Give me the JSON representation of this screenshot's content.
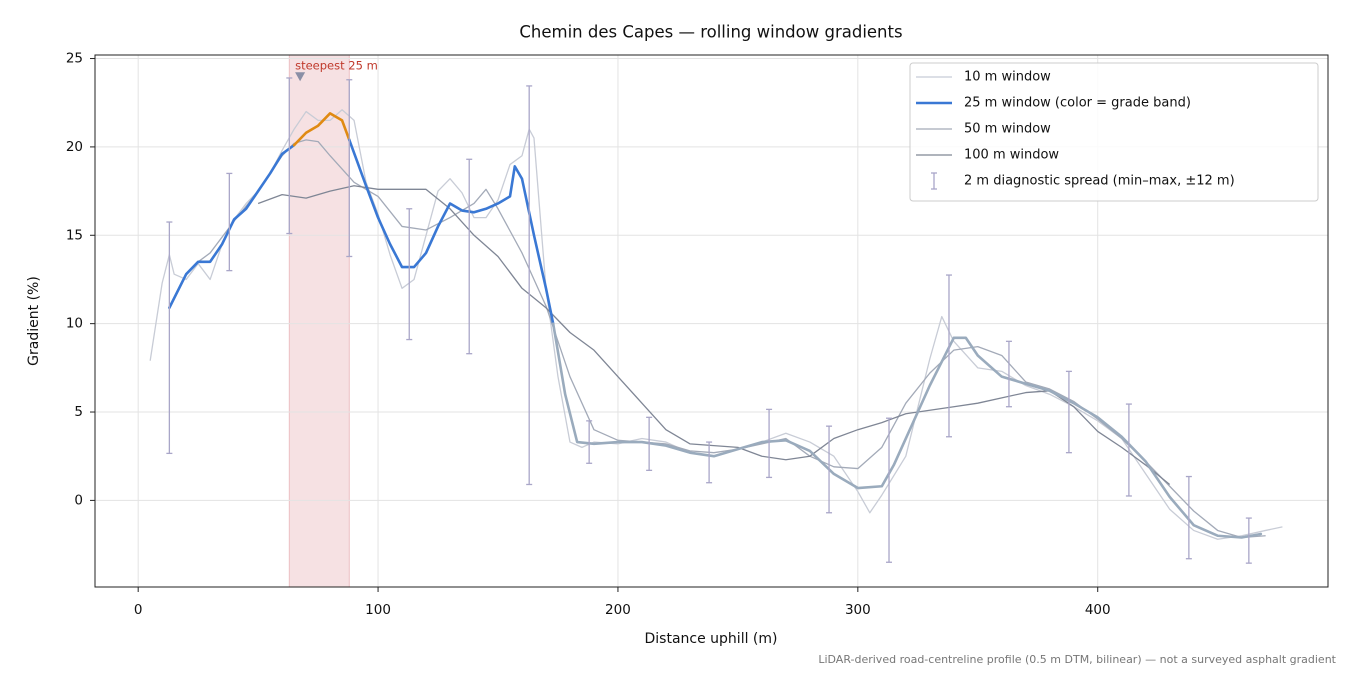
{
  "chart_data": {
    "type": "line",
    "title": "Chemin des Capes — rolling window gradients",
    "xlabel": "Distance uphill (m)",
    "ylabel": "Gradient (%)",
    "footnote": "LiDAR-derived road-centreline profile (0.5 m DTM, bilinear) — not a surveyed asphalt gradient",
    "xlim": [
      -18,
      496
    ],
    "ylim": [
      -4.9,
      25.2
    ],
    "xticks": [
      0,
      100,
      200,
      300,
      400
    ],
    "yticks": [
      0,
      5,
      10,
      15,
      20,
      25
    ],
    "grid": true,
    "legend": "upper right",
    "highlight": {
      "from": 63,
      "to": 88,
      "color": "#e8b4b8"
    },
    "annotation": {
      "text": "steepest 25 m",
      "x": 67.5,
      "y": 24,
      "color": "#c0392b"
    },
    "series": [
      {
        "name": "10 m window",
        "color": "#c8ccd6",
        "width": 1.3,
        "x": [
          5,
          10,
          13,
          15,
          20,
          25,
          30,
          35,
          40,
          45,
          50,
          55,
          60,
          65,
          70,
          75,
          80,
          85,
          90,
          95,
          100,
          105,
          110,
          115,
          120,
          125,
          130,
          135,
          140,
          145,
          150,
          155,
          160,
          163,
          165,
          170,
          175,
          180,
          185,
          190,
          200,
          210,
          220,
          230,
          240,
          250,
          260,
          270,
          280,
          290,
          300,
          305,
          310,
          320,
          330,
          335,
          340,
          350,
          360,
          370,
          380,
          390,
          400,
          410,
          420,
          430,
          440,
          450,
          460,
          470,
          477
        ],
        "values": [
          7.9,
          12.3,
          13.9,
          12.8,
          12.5,
          13.4,
          12.5,
          14.5,
          15.9,
          16.8,
          17.5,
          18.5,
          19.8,
          21,
          22,
          21.5,
          21.5,
          22.1,
          21.5,
          18,
          16.2,
          13.9,
          12,
          12.5,
          15,
          17.5,
          18.2,
          17.4,
          16,
          16,
          17,
          19,
          19.5,
          21,
          20.5,
          12,
          7,
          3.3,
          3,
          3.3,
          3.2,
          3.5,
          3.3,
          2.7,
          2.5,
          2.9,
          3.3,
          3.8,
          3.3,
          2.5,
          0.5,
          -0.7,
          0.3,
          2.5,
          8,
          10.4,
          9,
          7.5,
          7.3,
          6.5,
          6,
          5.3,
          4.5,
          3.5,
          1.5,
          -0.5,
          -1.7,
          -2.2,
          -2,
          -1.7,
          -1.5
        ]
      },
      {
        "name": "50 m window",
        "color": "#a3aab8",
        "width": 1.3,
        "x": [
          25,
          30,
          40,
          50,
          60,
          65,
          70,
          75,
          80,
          90,
          100,
          110,
          120,
          130,
          140,
          145,
          150,
          160,
          170,
          180,
          190,
          200,
          210,
          220,
          230,
          240,
          250,
          260,
          270,
          280,
          290,
          300,
          310,
          320,
          330,
          340,
          350,
          360,
          370,
          380,
          390,
          400,
          410,
          420,
          430,
          440,
          450,
          460,
          470
        ],
        "values": [
          13.5,
          14,
          15.8,
          17.5,
          19.5,
          20.2,
          20.4,
          20.3,
          19.5,
          18,
          17.2,
          15.5,
          15.3,
          16,
          16.8,
          17.6,
          16.5,
          14,
          11,
          7,
          4,
          3.4,
          3.3,
          3.2,
          2.8,
          2.7,
          2.9,
          3.2,
          3.5,
          2.5,
          1.9,
          1.8,
          3,
          5.5,
          7.2,
          8.5,
          8.7,
          8.2,
          6.7,
          6.3,
          5.6,
          4.6,
          3.5,
          2.2,
          0.8,
          -0.6,
          -1.7,
          -2.1,
          -2
        ]
      },
      {
        "name": "100 m window",
        "color": "#7f8695",
        "width": 1.3,
        "x": [
          50,
          60,
          70,
          80,
          90,
          100,
          110,
          120,
          130,
          140,
          150,
          160,
          170,
          180,
          190,
          200,
          210,
          220,
          230,
          240,
          250,
          260,
          270,
          280,
          290,
          300,
          310,
          320,
          330,
          340,
          350,
          360,
          370,
          380,
          390,
          400,
          410,
          420,
          430
        ],
        "values": [
          16.8,
          17.3,
          17.1,
          17.5,
          17.8,
          17.6,
          17.6,
          17.6,
          16.5,
          15,
          13.8,
          12,
          10.9,
          9.5,
          8.5,
          7,
          5.5,
          4,
          3.2,
          3.1,
          3,
          2.5,
          2.3,
          2.5,
          3.5,
          4,
          4.4,
          4.9,
          5.1,
          5.3,
          5.5,
          5.8,
          6.1,
          6.2,
          5.3,
          3.9,
          3,
          2,
          0.9
        ]
      },
      {
        "name": "25 m window (color = grade band)",
        "color": "#3a78d4",
        "width": 2.6,
        "x": [
          13,
          20,
          25,
          30,
          35,
          40,
          45,
          50,
          55,
          60,
          65,
          70,
          75,
          80,
          85,
          88,
          95,
          100,
          105,
          110,
          115,
          120,
          125,
          130,
          135,
          140,
          145,
          150,
          155,
          157,
          160,
          165,
          170,
          173,
          178,
          183,
          190,
          200,
          210,
          220,
          230,
          240,
          250,
          260,
          270,
          280,
          290,
          300,
          310,
          315,
          320,
          330,
          340,
          345,
          350,
          360,
          370,
          380,
          390,
          400,
          410,
          420,
          430,
          440,
          450,
          460,
          468
        ],
        "values": [
          10.9,
          12.8,
          13.5,
          13.5,
          14.5,
          15.9,
          16.5,
          17.5,
          18.5,
          19.6,
          20.1,
          20.8,
          21.2,
          21.9,
          21.5,
          20.4,
          17.8,
          16,
          14.5,
          13.2,
          13.2,
          14,
          15.5,
          16.8,
          16.4,
          16.3,
          16.5,
          16.8,
          17.2,
          18.9,
          18.2,
          15,
          12,
          10,
          6,
          3.3,
          3.2,
          3.3,
          3.3,
          3.1,
          2.7,
          2.5,
          2.9,
          3.3,
          3.4,
          2.8,
          1.5,
          0.7,
          0.8,
          2,
          3.5,
          6.5,
          9.2,
          9.2,
          8.2,
          7,
          6.6,
          6.2,
          5.5,
          4.7,
          3.6,
          2.2,
          0.2,
          -1.4,
          -2,
          -2.1,
          -1.9
        ],
        "colors": [
          "#3a78d4",
          "#3a78d4",
          "#3a78d4",
          "#3a78d4",
          "#3a78d4",
          "#3a78d4",
          "#3a78d4",
          "#3a78d4",
          "#3a78d4",
          "#3a78d4",
          "#e08a12",
          "#e08a12",
          "#e08a12",
          "#e08a12",
          "#e08a12",
          "#3a78d4",
          "#3a78d4",
          "#3a78d4",
          "#3a78d4",
          "#3a78d4",
          "#3a78d4",
          "#3a78d4",
          "#3a78d4",
          "#3a78d4",
          "#3a78d4",
          "#3a78d4",
          "#3a78d4",
          "#3a78d4",
          "#3a78d4",
          "#3a78d4",
          "#3a78d4",
          "#3a78d4",
          "#3a78d4",
          "#9aabbd",
          "#9aabbd",
          "#9aabbd",
          "#9aabbd",
          "#9aabbd",
          "#9aabbd",
          "#9aabbd",
          "#9aabbd",
          "#9aabbd",
          "#9aabbd",
          "#9aabbd",
          "#9aabbd",
          "#9aabbd",
          "#9aabbd",
          "#9aabbd",
          "#9aabbd",
          "#9aabbd",
          "#9aabbd",
          "#9aabbd",
          "#9aabbd",
          "#9aabbd",
          "#9aabbd",
          "#9aabbd",
          "#9aabbd",
          "#9aabbd",
          "#9aabbd",
          "#9aabbd",
          "#9aabbd",
          "#9aabbd",
          "#9aabbd",
          "#9aabbd",
          "#9aabbd",
          "#9aabbd",
          "#9aabbd"
        ]
      }
    ],
    "errorbars": {
      "name": "2 m diagnostic spread (min–max, ±12 m)",
      "color": "#a9a6c8",
      "x": [
        13,
        38,
        63,
        88,
        113,
        138,
        163,
        188,
        213,
        238,
        263,
        288,
        313,
        338,
        363,
        388,
        413,
        438,
        463
      ],
      "low": [
        2.66,
        13,
        15.1,
        13.8,
        9.1,
        8.3,
        0.9,
        2.1,
        1.7,
        1,
        1.3,
        -0.7,
        -3.5,
        3.6,
        5.3,
        2.7,
        0.25,
        -3.3,
        -3.55
      ],
      "high": [
        15.75,
        18.5,
        23.9,
        23.8,
        16.5,
        19.3,
        23.45,
        4.5,
        4.7,
        3.3,
        5.15,
        4.2,
        4.65,
        12.75,
        9,
        7.3,
        5.45,
        1.35,
        -1
      ]
    }
  }
}
